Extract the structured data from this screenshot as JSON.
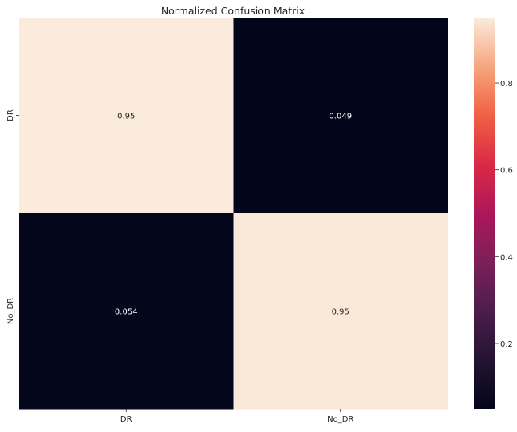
{
  "chart_data": {
    "type": "heatmap",
    "title": "Normalized Confusion Matrix",
    "xlabel": "",
    "ylabel": "",
    "x_categories": [
      "DR",
      "No_DR"
    ],
    "y_categories": [
      "DR",
      "No_DR"
    ],
    "values": [
      [
        0.951,
        0.049
      ],
      [
        0.054,
        0.946
      ]
    ],
    "annotations": [
      [
        "0.95",
        "0.049"
      ],
      [
        "0.054",
        "0.95"
      ]
    ],
    "colormap": "rocket",
    "colorbar": {
      "range": [
        0.049,
        0.951
      ],
      "ticks": [
        0.2,
        0.4,
        0.6,
        0.8
      ],
      "tick_labels": [
        "0.2",
        "0.4",
        "0.6",
        "0.8"
      ]
    },
    "grid": false
  }
}
